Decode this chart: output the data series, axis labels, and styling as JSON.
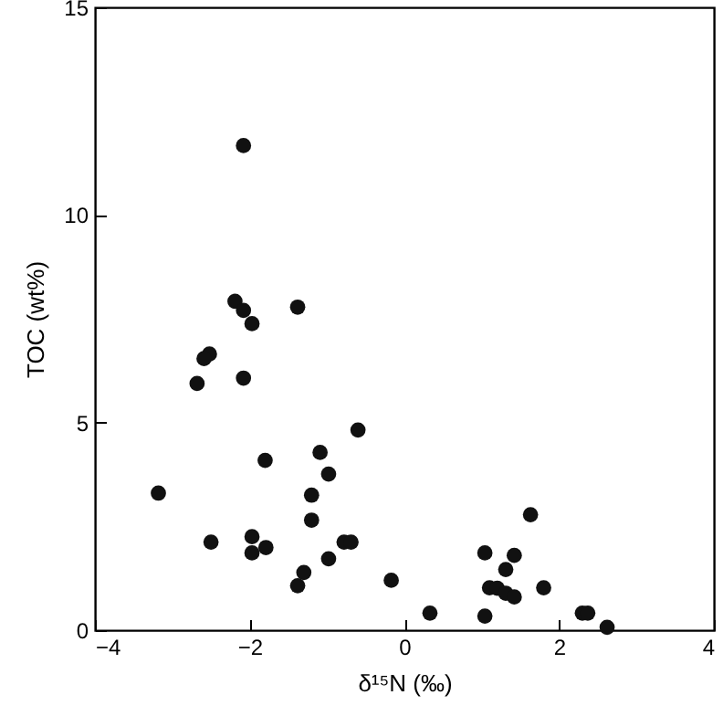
{
  "chart_data": {
    "type": "scatter",
    "xlabel": "δ¹⁵N (‰)",
    "ylabel": "TOC (wt%)",
    "x": [
      -2.08,
      -2.19,
      -2.08,
      -1.97,
      -1.38,
      -2.52,
      -2.59,
      -2.68,
      -2.08,
      -0.6,
      -1.8,
      -1.09,
      -0.98,
      -3.18,
      -1.2,
      -1.2,
      -2.5,
      -1.97,
      -1.97,
      -1.79,
      -0.78,
      -0.69,
      -0.98,
      -1.3,
      -1.38,
      -0.17,
      0.33,
      1.63,
      1.04,
      1.42,
      1.31,
      1.1,
      1.2,
      1.31,
      1.42,
      1.8,
      1.04,
      2.3,
      2.37,
      2.62
    ],
    "series": [
      {
        "color": "#111111",
        "values": [
          11.67,
          7.92,
          7.7,
          7.38,
          7.78,
          6.65,
          6.54,
          5.94,
          6.07,
          4.82,
          4.09,
          4.28,
          3.76,
          3.3,
          3.25,
          2.65,
          2.12,
          2.25,
          1.86,
          1.99,
          2.12,
          2.12,
          1.72,
          1.39,
          1.07,
          1.2,
          0.41,
          2.78,
          1.86,
          1.8,
          1.46,
          1.02,
          1.01,
          0.89,
          0.8,
          1.02,
          0.34,
          0.41,
          0.41,
          0.07
        ]
      }
    ],
    "xlim": [
      -4,
      4
    ],
    "xticks": [
      -4,
      -2,
      0,
      2,
      4
    ],
    "ylim": [
      0,
      15
    ],
    "yticks": [
      0,
      5,
      10,
      15
    ],
    "marker": "circle"
  }
}
